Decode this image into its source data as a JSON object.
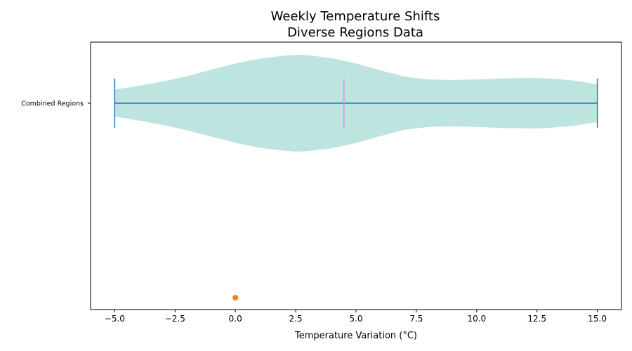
{
  "chart_data": {
    "type": "violin",
    "orientation": "horizontal",
    "title_line1": "Weekly Temperature Shifts",
    "title_line2": "Diverse Regions Data",
    "xlabel": "Temperature Variation (°C)",
    "ylabel": "",
    "xlim": [
      -6,
      16
    ],
    "xticks": [
      -5.0,
      -2.5,
      0.0,
      2.5,
      5.0,
      7.5,
      10.0,
      12.5,
      15.0
    ],
    "xtick_labels": [
      "−5.0",
      "−2.5",
      "0.0",
      "2.5",
      "5.0",
      "7.5",
      "10.0",
      "12.5",
      "15.0"
    ],
    "categories": [
      "Combined Regions"
    ],
    "violins": [
      {
        "category": "Combined Regions",
        "min": -5.0,
        "max": 15.0,
        "median": 4.5,
        "density_x": [
          -5.0,
          -4.0,
          -3.0,
          -2.0,
          -1.0,
          0.0,
          1.0,
          2.0,
          2.5,
          3.0,
          4.0,
          5.0,
          6.0,
          7.0,
          8.0,
          9.0,
          10.0,
          11.0,
          12.0,
          12.5,
          13.0,
          14.0,
          15.0
        ],
        "density_halfwidth": [
          0.28,
          0.36,
          0.45,
          0.56,
          0.69,
          0.82,
          0.92,
          0.98,
          1.0,
          0.99,
          0.93,
          0.82,
          0.68,
          0.55,
          0.49,
          0.48,
          0.49,
          0.51,
          0.52,
          0.52,
          0.51,
          0.47,
          0.39
        ],
        "body_color": "#bde4df",
        "line_color": "#1f77b4",
        "median_color": "#dd8ee0"
      }
    ],
    "points": [
      {
        "x": 0.0,
        "y_position": "bottom",
        "color": "#ff7f0e"
      }
    ],
    "grid": false,
    "legend": "none"
  }
}
